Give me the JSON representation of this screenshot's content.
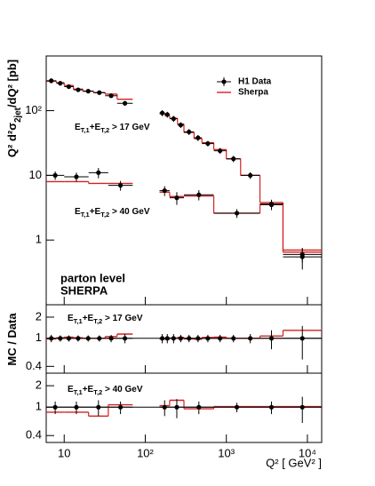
{
  "chart_data": [
    {
      "type": "binned",
      "log_x": true,
      "log_y": true,
      "xlim": [
        6,
        15000
      ],
      "xticks": [
        10,
        {
          "value": 100,
          "label": "10²"
        },
        {
          "value": 1000,
          "label": "10³"
        },
        {
          "value": 10000,
          "label": "10⁴"
        }
      ],
      "ylim": [
        0.1,
        700
      ],
      "yticks": [
        1,
        10,
        {
          "value": 100,
          "label": "10²"
        }
      ],
      "ylabel": [
        {
          "text": "Q² d²σ"
        },
        {
          "text": "2jet",
          "shift": "sub"
        },
        {
          "text": "/dQ² [pb]"
        }
      ],
      "legend_position": "upper right",
      "legend": [
        {
          "name": "H1 Data",
          "color": "#000000"
        },
        {
          "name": "Sherpa",
          "color": "#d42020"
        }
      ],
      "annotations": [
        {
          "text": "parton level",
          "color": "#c00000"
        },
        {
          "text": "SHERPA",
          "color": "#e6e6e6"
        }
      ],
      "groups": [
        {
          "label": [
            {
              "text": "E"
            },
            {
              "text": "T,1",
              "shift": "sub"
            },
            {
              "text": "+E"
            },
            {
              "text": "T,2",
              "shift": "sub"
            },
            {
              "text": " > 17 GeV"
            }
          ],
          "bins": [
            6,
            8,
            10,
            13,
            17,
            23,
            32,
            45,
            70
          ],
          "data": {
            "values": [
              290,
              265,
              235,
              210,
              200,
              190,
              170,
              130
            ],
            "errors": [
              25,
              22,
              18,
              15,
              14,
              13,
              12,
              10
            ]
          },
          "model": {
            "values": [
              285,
              270,
              245,
              215,
              200,
              190,
              180,
              150
            ]
          }
        },
        {
          "bins": [
            150,
            175,
            200,
            250,
            300,
            400,
            500,
            700,
            1000,
            1500,
            2600,
            5000,
            15000
          ],
          "data": {
            "values": [
              92,
              87,
              75,
              60,
              47,
              38,
              31,
              24,
              18,
              10,
              3.5,
              0.6
            ],
            "errors": [
              10,
              9,
              8,
              6,
              5,
              4,
              3,
              2.5,
              2,
              1.2,
              0.6,
              0.15
            ]
          },
          "model": {
            "values": [
              90,
              84,
              76,
              62,
              46,
              37,
              32,
              25,
              18,
              10,
              3.8,
              0.7
            ]
          }
        },
        {
          "label": [
            {
              "text": "E"
            },
            {
              "text": "T,1",
              "shift": "sub"
            },
            {
              "text": "+E"
            },
            {
              "text": "T,2",
              "shift": "sub"
            },
            {
              "text": " > 40 GeV"
            }
          ],
          "bins": [
            6,
            10,
            20,
            35,
            70
          ],
          "data": {
            "values": [
              10,
              9.5,
              11,
              7
            ],
            "errors": [
              1.5,
              1.5,
              2,
              1.2
            ]
          },
          "model": {
            "values": [
              8,
              8,
              7.5,
              7.5
            ]
          }
        },
        {
          "bins": [
            150,
            200,
            300,
            700,
            2600,
            5000,
            15000
          ],
          "data": {
            "values": [
              5.8,
              4.5,
              5,
              2.6,
              3.6,
              0.55
            ],
            "errors": [
              1,
              1,
              0.9,
              0.4,
              0.6,
              0.2
            ]
          },
          "model": {
            "values": [
              5.5,
              4.7,
              4.8,
              2.6,
              3.6,
              0.65
            ]
          }
        }
      ]
    },
    {
      "type": "binned",
      "log_x": true,
      "log_y": true,
      "xlim": [
        6,
        15000
      ],
      "xticks": [
        10,
        100,
        1000,
        10000
      ],
      "ylim": [
        0.32,
        3
      ],
      "yticks": [
        0.4,
        1,
        2
      ],
      "reference": 1,
      "ylabel": [
        {
          "text": "MC / Data"
        }
      ],
      "groups": [
        {
          "label": [
            {
              "text": "E"
            },
            {
              "text": "T,1",
              "shift": "sub"
            },
            {
              "text": "+E"
            },
            {
              "text": "T,2",
              "shift": "sub"
            },
            {
              "text": " > 17 GeV"
            }
          ],
          "bins": [
            6,
            8,
            10,
            13,
            17,
            23,
            32,
            45,
            70
          ],
          "data": {
            "values": [
              1,
              1,
              1,
              1,
              1,
              1,
              1,
              1
            ],
            "errors": [
              0.12,
              0.1,
              0.1,
              0.1,
              0.1,
              0.1,
              0.12,
              0.15
            ]
          },
          "model": {
            "values": [
              0.98,
              1.02,
              1.04,
              1.02,
              1,
              1,
              1.06,
              1.15
            ]
          }
        },
        {
          "bins": [
            150,
            175,
            200,
            250,
            300,
            400,
            500,
            700,
            1000,
            1500,
            2600,
            5000,
            15000
          ],
          "data": {
            "values": [
              1,
              1,
              1,
              1,
              1,
              1,
              1,
              1,
              1,
              1,
              1,
              1
            ],
            "errors": [
              0.15,
              0.15,
              0.15,
              0.12,
              0.12,
              0.12,
              0.12,
              0.12,
              0.12,
              0.15,
              0.3,
              0.5
            ]
          },
          "model": {
            "values": [
              0.98,
              0.97,
              1.01,
              1.03,
              0.98,
              0.97,
              1.03,
              1.04,
              1,
              1,
              1.08,
              1.3
            ]
          }
        }
      ]
    },
    {
      "type": "binned",
      "log_x": true,
      "log_y": true,
      "xlim": [
        6,
        15000
      ],
      "xticks": [
        10,
        {
          "value": 100,
          "label": "10²"
        },
        {
          "value": 1000,
          "label": "10³"
        },
        {
          "value": 10000,
          "label": "10⁴"
        }
      ],
      "xtick_labels": true,
      "xlabel": "Q² [ GeV² ]",
      "ylim": [
        0.32,
        3
      ],
      "yticks": [
        0.4,
        1,
        2
      ],
      "reference": 1,
      "groups": [
        {
          "label": [
            {
              "text": "E"
            },
            {
              "text": "T,1",
              "shift": "sub"
            },
            {
              "text": "+E"
            },
            {
              "text": "T,2",
              "shift": "sub"
            },
            {
              "text": " > 40 GeV"
            }
          ],
          "bins": [
            6,
            10,
            20,
            35,
            70
          ],
          "data": {
            "values": [
              1,
              1,
              1,
              1
            ],
            "errors": [
              0.2,
              0.2,
              0.25,
              0.2
            ]
          },
          "model": {
            "values": [
              0.85,
              0.85,
              0.75,
              1.08
            ]
          }
        },
        {
          "bins": [
            150,
            200,
            300,
            700,
            2600,
            5000,
            15000
          ],
          "data": {
            "values": [
              1,
              1,
              1,
              1,
              1,
              1
            ],
            "errors": [
              0.25,
              0.3,
              0.2,
              0.15,
              0.2,
              0.4
            ]
          },
          "model": {
            "values": [
              1.05,
              1.25,
              0.95,
              1.02,
              1.02,
              1.02
            ]
          }
        }
      ]
    }
  ]
}
